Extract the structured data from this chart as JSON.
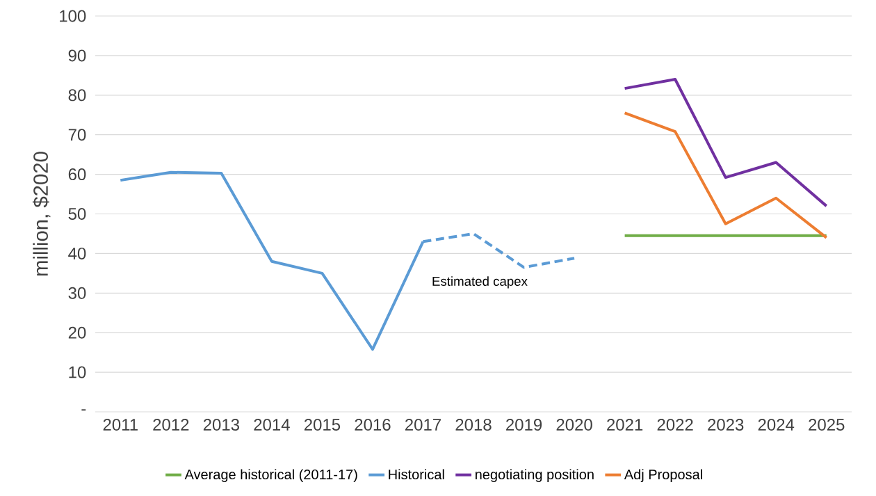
{
  "chart_data": {
    "type": "line",
    "ylabel": "million, $2020",
    "categories": [
      "2011",
      "2012",
      "2013",
      "2014",
      "2015",
      "2016",
      "2017",
      "2018",
      "2019",
      "2020",
      "2021",
      "2022",
      "2023",
      "2024",
      "2025"
    ],
    "series": [
      {
        "name": "Average historical (2011-17)",
        "color": "#70ad47",
        "values": [
          null,
          null,
          null,
          null,
          null,
          null,
          null,
          null,
          null,
          null,
          44.5,
          44.5,
          44.5,
          44.5,
          44.5
        ]
      },
      {
        "name": "Historical",
        "color": "#5b9bd5",
        "values": [
          58.5,
          60.5,
          60.3,
          38,
          35,
          15.8,
          43,
          null,
          null,
          null,
          null,
          null,
          null,
          null,
          null
        ]
      },
      {
        "color": "#5b9bd5",
        "line_style": "dashed",
        "values": [
          null,
          null,
          null,
          null,
          null,
          null,
          43,
          45,
          36.5,
          38.8,
          null,
          null,
          null,
          null,
          null
        ]
      },
      {
        "name": "negotiating position",
        "color": "#7030a0",
        "values": [
          null,
          null,
          null,
          null,
          null,
          null,
          null,
          null,
          null,
          null,
          81.7,
          84,
          59.2,
          63,
          52
        ]
      },
      {
        "name": "Adj Proposal",
        "color": "#ed7d31",
        "values": [
          null,
          null,
          null,
          null,
          null,
          null,
          null,
          null,
          null,
          null,
          75.5,
          70.8,
          47.5,
          54,
          44
        ]
      }
    ],
    "ylim": [
      0,
      100
    ],
    "yticks": [
      {
        "value": 0,
        "label": "-"
      },
      10,
      20,
      30,
      40,
      50,
      60,
      70,
      80,
      90,
      100
    ],
    "grid": "y",
    "legend": "bottom",
    "marker": "none",
    "line_style": "solid",
    "annotations": [
      "Estimated capex"
    ]
  }
}
